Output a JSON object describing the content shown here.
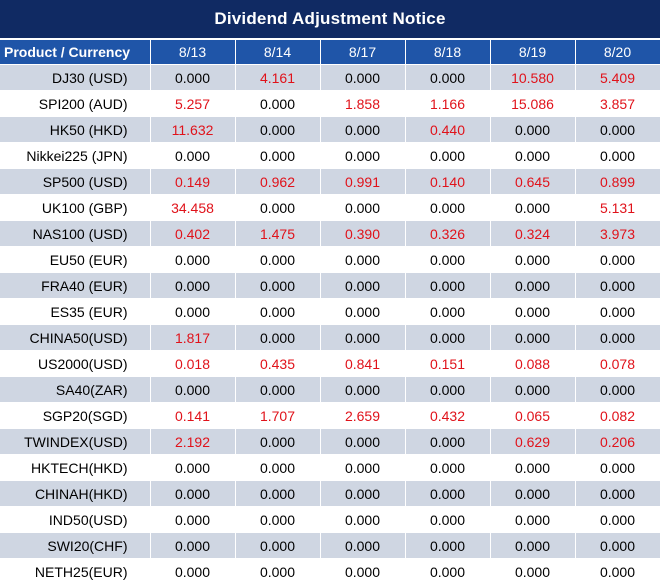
{
  "title": "Dividend Adjustment Notice",
  "header": {
    "product_label": "Product / Currency",
    "dates": [
      "8/13",
      "8/14",
      "8/17",
      "8/18",
      "8/19",
      "8/20"
    ]
  },
  "colors": {
    "title_bg": "#102a63",
    "header_bg": "#1f55a8",
    "row_shaded": "#cfd6e2",
    "row_plain": "#ffffff",
    "positive_value": "#e0121a",
    "zero_value": "#000000"
  },
  "rows": [
    {
      "product": "DJ30 (USD)",
      "values": [
        "0.000",
        "4.161",
        "0.000",
        "0.000",
        "10.580",
        "5.409"
      ]
    },
    {
      "product": "SPI200 (AUD)",
      "values": [
        "5.257",
        "0.000",
        "1.858",
        "1.166",
        "15.086",
        "3.857"
      ]
    },
    {
      "product": "HK50 (HKD)",
      "values": [
        "11.632",
        "0.000",
        "0.000",
        "0.440",
        "0.000",
        "0.000"
      ]
    },
    {
      "product": "Nikkei225 (JPN)",
      "values": [
        "0.000",
        "0.000",
        "0.000",
        "0.000",
        "0.000",
        "0.000"
      ]
    },
    {
      "product": "SP500 (USD)",
      "values": [
        "0.149",
        "0.962",
        "0.991",
        "0.140",
        "0.645",
        "0.899"
      ]
    },
    {
      "product": "UK100 (GBP)",
      "values": [
        "34.458",
        "0.000",
        "0.000",
        "0.000",
        "0.000",
        "5.131"
      ]
    },
    {
      "product": "NAS100 (USD)",
      "values": [
        "0.402",
        "1.475",
        "0.390",
        "0.326",
        "0.324",
        "3.973"
      ]
    },
    {
      "product": "EU50 (EUR)",
      "values": [
        "0.000",
        "0.000",
        "0.000",
        "0.000",
        "0.000",
        "0.000"
      ]
    },
    {
      "product": "FRA40 (EUR)",
      "values": [
        "0.000",
        "0.000",
        "0.000",
        "0.000",
        "0.000",
        "0.000"
      ]
    },
    {
      "product": "ES35 (EUR)",
      "values": [
        "0.000",
        "0.000",
        "0.000",
        "0.000",
        "0.000",
        "0.000"
      ]
    },
    {
      "product": "CHINA50(USD)",
      "values": [
        "1.817",
        "0.000",
        "0.000",
        "0.000",
        "0.000",
        "0.000"
      ]
    },
    {
      "product": "US2000(USD)",
      "values": [
        "0.018",
        "0.435",
        "0.841",
        "0.151",
        "0.088",
        "0.078"
      ]
    },
    {
      "product": "SA40(ZAR)",
      "values": [
        "0.000",
        "0.000",
        "0.000",
        "0.000",
        "0.000",
        "0.000"
      ]
    },
    {
      "product": "SGP20(SGD)",
      "values": [
        "0.141",
        "1.707",
        "2.659",
        "0.432",
        "0.065",
        "0.082"
      ]
    },
    {
      "product": "TWINDEX(USD)",
      "values": [
        "2.192",
        "0.000",
        "0.000",
        "0.000",
        "0.629",
        "0.206"
      ]
    },
    {
      "product": "HKTECH(HKD)",
      "values": [
        "0.000",
        "0.000",
        "0.000",
        "0.000",
        "0.000",
        "0.000"
      ]
    },
    {
      "product": "CHINAH(HKD)",
      "values": [
        "0.000",
        "0.000",
        "0.000",
        "0.000",
        "0.000",
        "0.000"
      ]
    },
    {
      "product": "IND50(USD)",
      "values": [
        "0.000",
        "0.000",
        "0.000",
        "0.000",
        "0.000",
        "0.000"
      ]
    },
    {
      "product": "SWI20(CHF)",
      "values": [
        "0.000",
        "0.000",
        "0.000",
        "0.000",
        "0.000",
        "0.000"
      ]
    },
    {
      "product": "NETH25(EUR)",
      "values": [
        "0.000",
        "0.000",
        "0.000",
        "0.000",
        "0.000",
        "0.000"
      ]
    }
  ]
}
